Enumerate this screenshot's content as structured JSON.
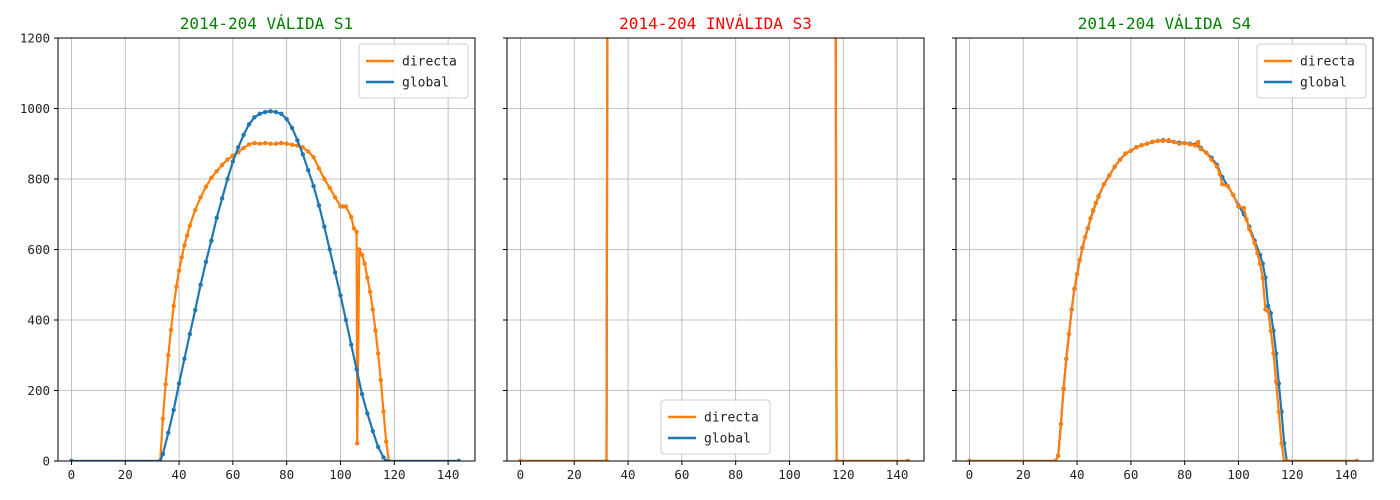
{
  "colors": {
    "directa": "#ff7f0e",
    "global": "#1f77b4",
    "valid": "#008000",
    "invalid": "#ff0000",
    "grid": "#b0b0b0"
  },
  "chart_data": [
    {
      "type": "line",
      "title": "2014-204 VÁLIDA S1",
      "status": "valid",
      "xlim": [
        -5,
        150
      ],
      "ylim": [
        0,
        1200
      ],
      "xticks": [
        0,
        20,
        40,
        60,
        80,
        100,
        120,
        140
      ],
      "yticks": [
        0,
        200,
        400,
        600,
        800,
        1000,
        1200
      ],
      "show_y_tick_labels": true,
      "legend": {
        "placement": "top-right",
        "entries": [
          "directa",
          "global"
        ]
      },
      "grid": true,
      "series": [
        {
          "name": "directa",
          "color": "#ff7f0e",
          "x": [
            0,
            33,
            34,
            35,
            36,
            37,
            38,
            39,
            40,
            41,
            42,
            43,
            44,
            46,
            48,
            50,
            52,
            54,
            56,
            58,
            60,
            62,
            64,
            66,
            68,
            70,
            72,
            74,
            76,
            78,
            80,
            82,
            84,
            86,
            88,
            90,
            92,
            94,
            96,
            98,
            100,
            101,
            102,
            104,
            105,
            106,
            106.2,
            107,
            108,
            109,
            110,
            111,
            112,
            113,
            114,
            115,
            116,
            117,
            118,
            144
          ],
          "y": [
            0,
            0,
            120,
            218,
            300,
            372,
            440,
            495,
            540,
            578,
            612,
            640,
            668,
            712,
            748,
            778,
            803,
            822,
            840,
            855,
            866,
            876,
            888,
            898,
            902,
            900,
            902,
            900,
            900,
            902,
            900,
            897,
            895,
            890,
            878,
            862,
            830,
            800,
            775,
            748,
            722,
            722,
            722,
            692,
            660,
            650,
            50,
            600,
            585,
            560,
            520,
            480,
            430,
            370,
            305,
            230,
            140,
            55,
            0,
            0
          ]
        },
        {
          "name": "global",
          "color": "#1f77b4",
          "x": [
            0,
            33,
            34,
            36,
            38,
            40,
            42,
            44,
            46,
            48,
            50,
            52,
            54,
            56,
            58,
            60,
            62,
            64,
            66,
            68,
            70,
            72,
            74,
            76,
            78,
            80,
            82,
            84,
            86,
            88,
            90,
            92,
            94,
            96,
            98,
            100,
            102,
            104,
            106,
            108,
            110,
            112,
            114,
            116,
            117,
            144
          ],
          "y": [
            0,
            0,
            20,
            80,
            145,
            220,
            290,
            360,
            428,
            500,
            565,
            625,
            690,
            745,
            800,
            850,
            890,
            925,
            955,
            975,
            985,
            990,
            992,
            990,
            985,
            970,
            945,
            910,
            870,
            825,
            780,
            725,
            665,
            600,
            535,
            470,
            400,
            330,
            260,
            190,
            135,
            85,
            40,
            10,
            0,
            0
          ]
        }
      ]
    },
    {
      "type": "line",
      "title": "2014-204 INVÁLIDA S3",
      "status": "invalid",
      "xlim": [
        -5,
        150
      ],
      "ylim": [
        0,
        1200
      ],
      "xticks": [
        0,
        20,
        40,
        60,
        80,
        100,
        120,
        140
      ],
      "yticks": [
        0,
        200,
        400,
        600,
        800,
        1000,
        1200
      ],
      "show_y_tick_labels": false,
      "legend": {
        "placement": "bottom-center",
        "entries": [
          "directa",
          "global"
        ]
      },
      "grid": true,
      "series": [
        {
          "name": "global",
          "color": "#1f77b4",
          "x": [
            0,
            32,
            32.5,
            117,
            117.5,
            144
          ],
          "y": [
            0,
            0,
            2000,
            2000,
            0,
            0
          ]
        },
        {
          "name": "directa",
          "color": "#ff7f0e",
          "x": [
            0,
            32,
            32.5,
            117,
            117.5,
            144
          ],
          "y": [
            0,
            0,
            2000,
            2000,
            0,
            0
          ]
        }
      ]
    },
    {
      "type": "line",
      "title": "2014-204 VÁLIDA S4",
      "status": "valid",
      "xlim": [
        -5,
        150
      ],
      "ylim": [
        0,
        1200
      ],
      "xticks": [
        0,
        20,
        40,
        60,
        80,
        100,
        120,
        140
      ],
      "yticks": [
        0,
        200,
        400,
        600,
        800,
        1000,
        1200
      ],
      "show_y_tick_labels": false,
      "legend": {
        "placement": "top-right",
        "entries": [
          "directa",
          "global"
        ]
      },
      "grid": true,
      "series": [
        {
          "name": "global",
          "color": "#1f77b4",
          "x": [
            0,
            32,
            33,
            34,
            35,
            36,
            37,
            38,
            39,
            40,
            42,
            44,
            46,
            48,
            50,
            52,
            54,
            56,
            58,
            60,
            62,
            64,
            66,
            68,
            70,
            72,
            74,
            76,
            78,
            80,
            82,
            84,
            86,
            88,
            90,
            92,
            94,
            96,
            98,
            100,
            102,
            104,
            106,
            108,
            109,
            110,
            111,
            112,
            113,
            114,
            115,
            116,
            117,
            118,
            144
          ],
          "y": [
            0,
            0,
            15,
            105,
            205,
            290,
            360,
            430,
            488,
            530,
            605,
            660,
            710,
            750,
            785,
            810,
            835,
            855,
            872,
            880,
            890,
            896,
            900,
            905,
            908,
            910,
            908,
            905,
            903,
            902,
            900,
            898,
            888,
            875,
            860,
            840,
            805,
            780,
            755,
            725,
            700,
            665,
            625,
            585,
            560,
            520,
            440,
            420,
            370,
            305,
            220,
            140,
            50,
            0,
            0
          ]
        },
        {
          "name": "directa",
          "color": "#ff7f0e",
          "x": [
            0,
            32,
            33,
            34,
            35,
            36,
            37,
            38,
            39,
            40,
            41,
            42,
            43,
            44,
            45,
            46,
            47,
            48,
            50,
            52,
            54,
            56,
            58,
            60,
            62,
            64,
            66,
            68,
            70,
            72,
            74,
            76,
            78,
            80,
            82,
            84,
            85,
            86,
            88,
            90,
            92,
            93,
            94,
            96,
            98,
            100,
            102,
            103,
            104,
            106,
            107,
            108,
            109,
            110,
            111,
            112,
            113,
            114,
            115,
            116,
            117,
            118,
            144
          ],
          "y": [
            0,
            0,
            15,
            105,
            205,
            290,
            360,
            430,
            488,
            530,
            570,
            605,
            635,
            660,
            688,
            712,
            732,
            752,
            785,
            810,
            835,
            855,
            872,
            880,
            890,
            896,
            900,
            905,
            908,
            908,
            910,
            905,
            900,
            902,
            898,
            895,
            905,
            885,
            875,
            855,
            835,
            815,
            785,
            780,
            755,
            722,
            718,
            685,
            658,
            618,
            590,
            560,
            520,
            430,
            425,
            370,
            305,
            225,
            140,
            50,
            0,
            0,
            0
          ]
        }
      ]
    }
  ]
}
